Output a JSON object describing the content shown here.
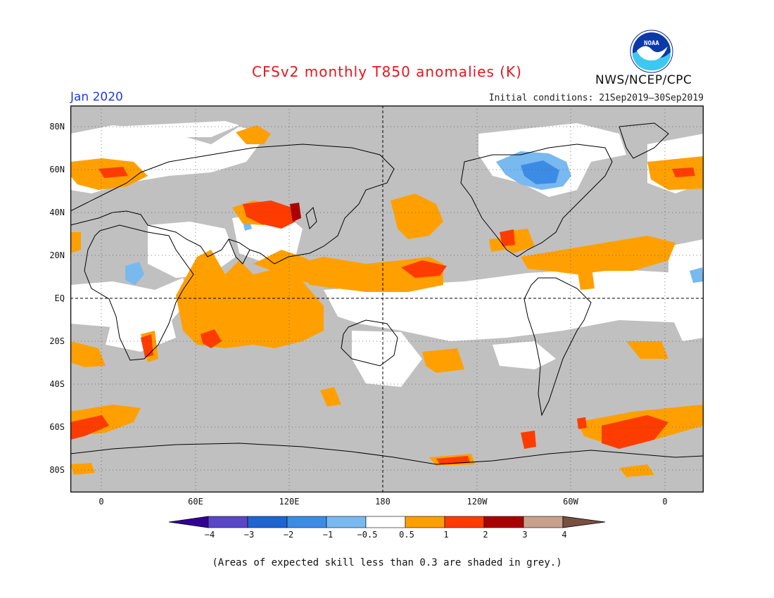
{
  "header": {
    "title": "CFSv2 monthly T850 anomalies (K)",
    "month": "Jan 2020",
    "initial_conditions": "Initial conditions: 21Sep2019–30Sep2019",
    "agency": "NWS/NCEP/CPC",
    "logo_text": "NOAA"
  },
  "map": {
    "variable": "850 hPa temperature anomaly",
    "units": "K",
    "lat_labels": [
      "80N",
      "60N",
      "40N",
      "20N",
      "EQ",
      "20S",
      "40S",
      "60S",
      "80S"
    ],
    "lon_labels": [
      "0",
      "60E",
      "120E",
      "180",
      "120W",
      "60W",
      "0"
    ],
    "grid": true,
    "reference_lines": [
      "equator",
      "dateline"
    ]
  },
  "colorbar": {
    "labels": [
      "−4",
      "−3",
      "−2",
      "−1",
      "−0.5",
      "0.5",
      "1",
      "2",
      "3",
      "4"
    ],
    "colors": [
      "#320096",
      "#5a46c8",
      "#1e64d2",
      "#3c8ce6",
      "#78b9f0",
      "#ffffff",
      "#ffa000",
      "#ff3c00",
      "#aa0000",
      "#c8a08c",
      "#785040"
    ],
    "grey_color": "#c0c0c0"
  },
  "footer": {
    "note": "(Areas of expected skill less than 0.3 are shaded in grey.)"
  }
}
